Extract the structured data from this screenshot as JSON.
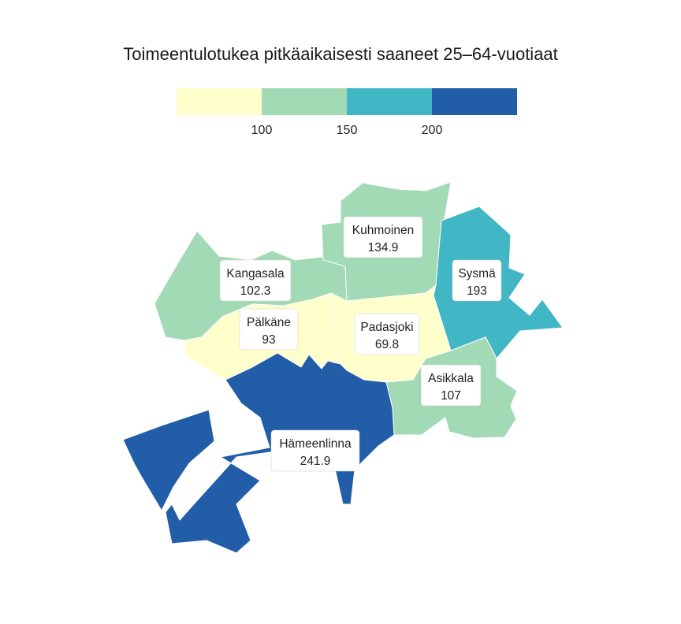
{
  "title": "Toimeentulotukea pitkäaikaisesti saaneet 25–64-vuotiaat",
  "legend": {
    "colors": [
      "#ffffcc",
      "#a1dab4",
      "#41b6c4",
      "#225ea8"
    ],
    "breaks": [
      "100",
      "150",
      "200"
    ]
  },
  "regions": [
    {
      "name": "Kangasala",
      "value": "102.3",
      "color": "#a1dab4"
    },
    {
      "name": "Kuhmoinen",
      "value": "134.9",
      "color": "#a1dab4"
    },
    {
      "name": "Sysmä",
      "value": "193",
      "color": "#41b6c4"
    },
    {
      "name": "Pälkäne",
      "value": "93",
      "color": "#ffffcc"
    },
    {
      "name": "Padasjoki",
      "value": "69.8",
      "color": "#ffffcc"
    },
    {
      "name": "Asikkala",
      "value": "107",
      "color": "#a1dab4"
    },
    {
      "name": "Hämeenlinna",
      "value": "241.9",
      "color": "#225ea8"
    }
  ]
}
